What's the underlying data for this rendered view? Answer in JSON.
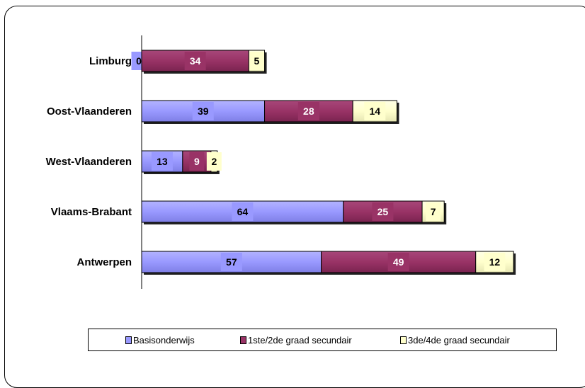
{
  "chart_data": {
    "type": "bar",
    "orientation": "horizontal",
    "stacked": true,
    "title": "",
    "xlabel": "",
    "ylabel": "",
    "categories": [
      "Limburg",
      "Oost-Vlaanderen",
      "West-Vlaanderen",
      "Vlaams-Brabant",
      "Antwerpen"
    ],
    "series": [
      {
        "name": "Basisonderwijs",
        "color": "#9999ff",
        "values": [
          0,
          39,
          13,
          64,
          57
        ]
      },
      {
        "name": "1ste/2de graad secundair",
        "color": "#993366",
        "values": [
          34,
          28,
          9,
          25,
          49
        ]
      },
      {
        "name": "3de/4de graad secundair",
        "color": "#ffffcc",
        "values": [
          5,
          14,
          2,
          7,
          12
        ]
      }
    ],
    "xlim": [
      0,
      130
    ],
    "grid": false,
    "legend_position": "bottom",
    "data_labels": true
  }
}
